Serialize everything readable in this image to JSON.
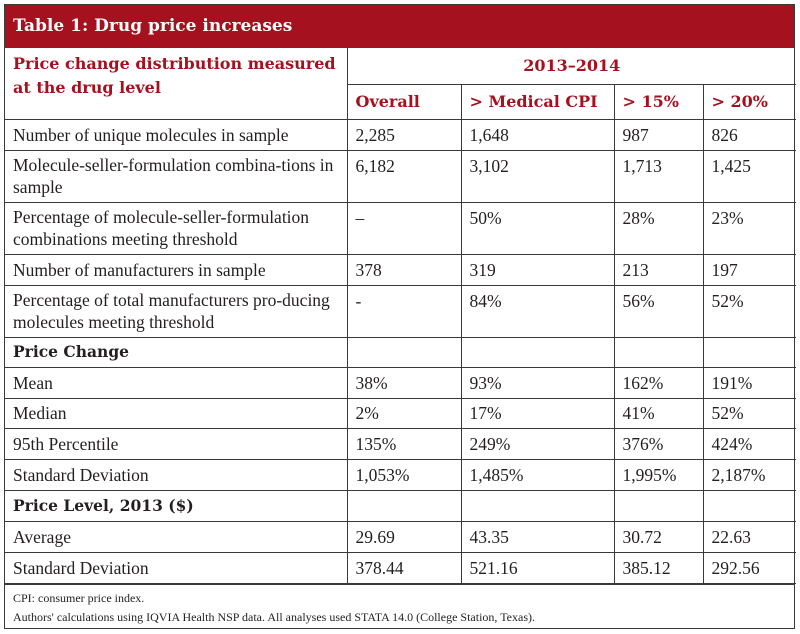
{
  "title": "Table 1: Drug price increases",
  "header": {
    "row_label": "Price change distribution measured at the drug level",
    "period": "2013–2014",
    "columns": [
      "Overall",
      "> Medical CPI",
      "> 15%",
      "> 20%"
    ]
  },
  "rows": [
    {
      "label": "Number of unique molecules in sample",
      "values": [
        "2,285",
        "1,648",
        "987",
        "826"
      ]
    },
    {
      "label": "Molecule-seller-formulation combina-tions in sample",
      "values": [
        "6,182",
        "3,102",
        "1,713",
        "1,425"
      ]
    },
    {
      "label": "Percentage of molecule-seller-formulation combinations meeting threshold",
      "values": [
        "–",
        "50%",
        "28%",
        "23%"
      ]
    },
    {
      "label": "Number of manufacturers in sample",
      "values": [
        "378",
        "319",
        "213",
        "197"
      ]
    },
    {
      "label": "Percentage of total manufacturers pro-ducing molecules meeting threshold",
      "values": [
        "-",
        "84%",
        "56%",
        "52%"
      ]
    }
  ],
  "section_price_change": "Price Change",
  "price_change_rows": [
    {
      "label": "Mean",
      "values": [
        "38%",
        "93%",
        "162%",
        "191%"
      ]
    },
    {
      "label": "Median",
      "values": [
        "2%",
        "17%",
        "41%",
        "52%"
      ]
    },
    {
      "label": "95th Percentile",
      "values": [
        "135%",
        "249%",
        "376%",
        "424%"
      ]
    },
    {
      "label": "Standard Deviation",
      "values": [
        "1,053%",
        "1,485%",
        "1,995%",
        "2,187%"
      ]
    }
  ],
  "section_price_level": "Price Level, 2013 ($)",
  "price_level_rows": [
    {
      "label": "Average",
      "values": [
        "29.69",
        "43.35",
        "30.72",
        "22.63"
      ]
    },
    {
      "label": "Standard Deviation",
      "values": [
        "378.44",
        "521.16",
        "385.12",
        "292.56"
      ]
    }
  ],
  "footnotes": [
    "CPI: consumer price index.",
    "Authors' calculations using IQVIA Health NSP data. All analyses used STATA 14.0 (College Station, Texas)."
  ]
}
